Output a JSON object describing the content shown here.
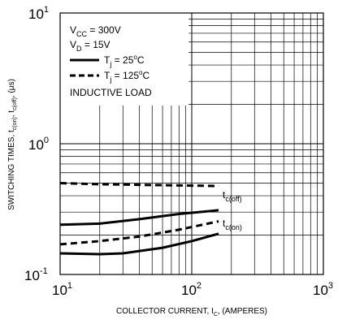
{
  "chart_data": {
    "type": "line",
    "xscale": "log",
    "yscale": "log",
    "xlim": [
      10,
      1000
    ],
    "ylim": [
      0.1,
      10
    ],
    "grid": true,
    "xlabel": {
      "main": "COLLECTOR CURRENT, I",
      "sub": "C",
      "tail": ", (AMPERES)"
    },
    "ylabel": {
      "p1": "SWITCHING TIMES, t",
      "s1": "c(on)",
      "p2": ", t",
      "s2": "c(off)",
      "p3": ", (μs)"
    },
    "xticks": [
      {
        "value": 10,
        "base": "10",
        "exp": "1"
      },
      {
        "value": 100,
        "base": "10",
        "exp": "2"
      },
      {
        "value": 1000,
        "base": "10",
        "exp": "3"
      }
    ],
    "yticks": [
      {
        "value": 10,
        "base": "10",
        "exp": "1"
      },
      {
        "value": 1,
        "base": "10",
        "exp": "0"
      },
      {
        "value": 0.1,
        "base": "10",
        "exp": "-1"
      }
    ],
    "legend": {
      "placement": "top-left",
      "conditions": [
        {
          "main": "V",
          "sub": "CC",
          "tail": " = 300V"
        },
        {
          "main": "V",
          "sub": "D",
          "tail": " = 15V"
        }
      ],
      "entries": [
        {
          "style": "solid",
          "main": "T",
          "sub": "j",
          "tail": " = 25",
          "sup": "o",
          "end": "C"
        },
        {
          "style": "dashed",
          "main": "T",
          "sub": "j",
          "tail": " = 125",
          "sup": "o",
          "end": "C"
        }
      ],
      "note": "INDUCTIVE LOAD"
    },
    "series": [
      {
        "quantity": "tc(off)",
        "style": "dashed",
        "temp": "125C",
        "x": [
          10,
          20,
          40,
          80,
          160
        ],
        "y": [
          0.5,
          0.49,
          0.485,
          0.48,
          0.475
        ]
      },
      {
        "quantity": "tc(off)",
        "style": "solid",
        "temp": "25C",
        "x": [
          10,
          20,
          40,
          80,
          160
        ],
        "y": [
          0.24,
          0.245,
          0.265,
          0.29,
          0.31
        ]
      },
      {
        "quantity": "tc(on)",
        "style": "dashed",
        "temp": "125C",
        "x": [
          10,
          20,
          40,
          80,
          160
        ],
        "y": [
          0.17,
          0.18,
          0.195,
          0.22,
          0.255
        ]
      },
      {
        "quantity": "tc(on)",
        "style": "solid",
        "temp": "25C",
        "x": [
          10,
          20,
          30,
          60,
          100,
          160
        ],
        "y": [
          0.145,
          0.143,
          0.145,
          0.16,
          0.18,
          0.205
        ]
      }
    ],
    "annotations": [
      {
        "main": "t",
        "sub": "c(off)",
        "at_x": 160,
        "at_y": 0.37
      },
      {
        "main": "t",
        "sub": "c(on)",
        "at_x": 160,
        "at_y": 0.22
      }
    ]
  }
}
